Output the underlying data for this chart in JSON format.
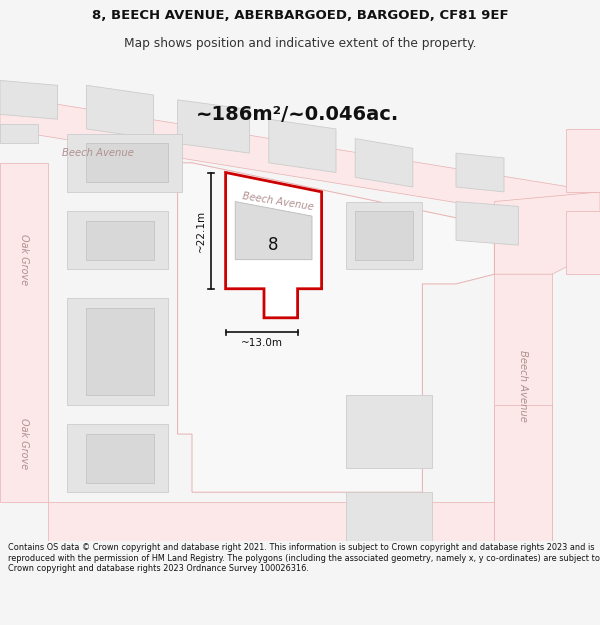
{
  "title_line1": "8, BEECH AVENUE, ABERBARGOED, BARGOED, CF81 9EF",
  "title_line2": "Map shows position and indicative extent of the property.",
  "area_label": "~186m²/~0.046ac.",
  "plot_number": "8",
  "dim_vertical": "~22.1m",
  "dim_horizontal": "~13.0m",
  "footer": "Contains OS data © Crown copyright and database right 2021. This information is subject to Crown copyright and database rights 2023 and is reproduced with the permission of HM Land Registry. The polygons (including the associated geometry, namely x, y co-ordinates) are subject to Crown copyright and database rights 2023 Ordnance Survey 100026316.",
  "bg_color": "#f5f5f5",
  "map_bg": "#f8f8f8",
  "road_color": "#fce8e8",
  "road_edge": "#e8b0b0",
  "building_color": "#e4e4e4",
  "building_outline": "#cccccc",
  "plot_fill": "#ffffff",
  "plot_outline": "#cc0000",
  "street_label_color": "#b09090",
  "dim_color": "#111111",
  "area_label_color": "#111111",
  "plot_number_color": "#111111"
}
